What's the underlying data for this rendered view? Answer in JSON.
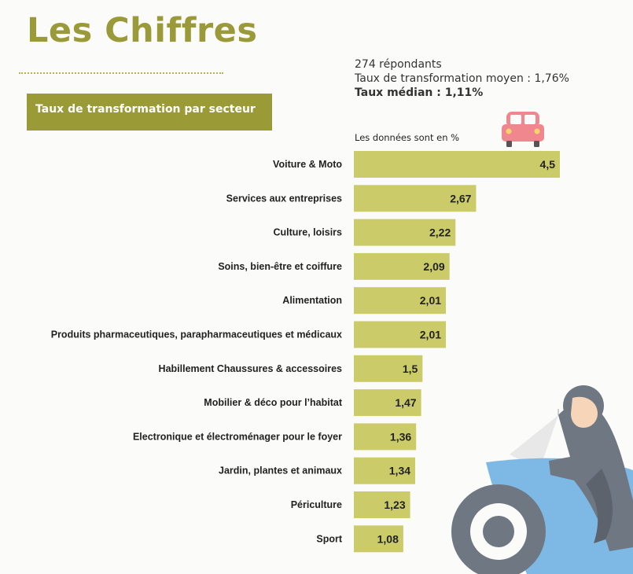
{
  "header": {
    "title": "Les Chiffres"
  },
  "stats": {
    "respondents": "274 répondants",
    "mean_rate": "Taux de transformation moyen : 1,76%",
    "median_rate": "Taux médian : 1,11%"
  },
  "section": {
    "label": "Taux de transformation par secteur"
  },
  "note": "Les données sont en %",
  "colors": {
    "bar": "#cccb6a",
    "title": "#9a9a3a",
    "section_bg": "#9a9a36",
    "car": "#f0868e",
    "moto_body": "#7eb9e5",
    "moto_wheel": "#6f7782"
  },
  "icons": [
    "car-icon",
    "motorcycle-rider-icon"
  ],
  "chart_data": {
    "type": "bar",
    "orientation": "horizontal",
    "title": "",
    "xlabel": "",
    "ylabel": "",
    "grid": false,
    "categories": [
      "Voiture & Moto",
      "Services aux entreprises",
      "Culture, loisirs",
      "Soins, bien-être et coiffure",
      "Alimentation",
      "Produits pharmaceutiques, parapharmaceutiques et médicaux",
      "Habillement Chaussures & accessoires",
      "Mobilier & déco pour l’habitat",
      "Electronique et électroménager pour le foyer",
      "Jardin, plantes et animaux",
      "Périculture",
      "Sport"
    ],
    "values": [
      4.5,
      2.67,
      2.22,
      2.09,
      2.01,
      2.01,
      1.5,
      1.47,
      1.36,
      1.34,
      1.23,
      1.08
    ],
    "value_labels": [
      "4,5",
      "2,67",
      "2,22",
      "2,09",
      "2,01",
      "2,01",
      "1,5",
      "1,47",
      "1,36",
      "1,34",
      "1,23",
      "1,08"
    ],
    "xlim": [
      0,
      4.5
    ]
  }
}
